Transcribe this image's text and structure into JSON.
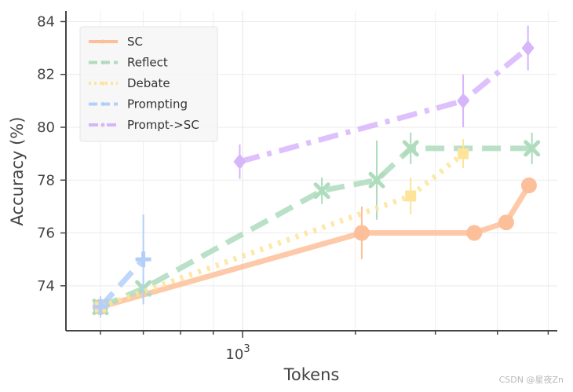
{
  "chart_data": {
    "type": "line",
    "xlabel": "Tokens",
    "ylabel": "Accuracy (%)",
    "xscale": "log",
    "xlim": [
      530,
      3100
    ],
    "ylim": [
      72.3,
      84.4
    ],
    "y_ticks": [
      74,
      76,
      78,
      80,
      82,
      84
    ],
    "x_tick_labels": [
      {
        "value": 1000,
        "base": "10",
        "exp": "3"
      }
    ],
    "grid": true,
    "legend_position": "top-left",
    "series": [
      {
        "name": "SC",
        "color": "#fdbf99",
        "marker": "circle",
        "dash": "solid",
        "x": [
          600,
          1535,
          2300,
          2580,
          2800
        ],
        "y": [
          73.2,
          76.0,
          76.0,
          76.4,
          77.8
        ],
        "err": [
          0.3,
          1.0,
          0.3,
          0.25,
          0.3
        ]
      },
      {
        "name": "Reflect",
        "color": "#aedcbd",
        "marker": "x",
        "dash": "dashed",
        "x": [
          600,
          700,
          1330,
          1620,
          1830,
          2830
        ],
        "y": [
          73.2,
          73.9,
          77.6,
          78.0,
          79.2,
          79.2
        ],
        "err": [
          0.3,
          0.5,
          0.5,
          1.5,
          0.6,
          0.6
        ]
      },
      {
        "name": "Debate",
        "color": "#fde49a",
        "marker": "square",
        "dash": "dotted",
        "x": [
          600,
          1830,
          2210
        ],
        "y": [
          73.2,
          77.4,
          79.0
        ],
        "err": [
          0.3,
          0.7,
          0.55
        ]
      },
      {
        "name": "Prompting",
        "color": "#b3cff9",
        "marker": "plus",
        "dash": "dashed",
        "x": [
          600,
          700
        ],
        "y": [
          73.2,
          75.0
        ],
        "err": [
          0.4,
          1.7
        ]
      },
      {
        "name": "Prompt->SC",
        "color": "#d7b5fb",
        "marker": "diamond",
        "dash": "dashdot",
        "x": [
          990,
          2210,
          2790
        ],
        "y": [
          78.7,
          81.0,
          83.0
        ],
        "err": [
          0.65,
          1.0,
          0.85
        ]
      }
    ]
  },
  "watermark": "CSDN @星夜Zn"
}
